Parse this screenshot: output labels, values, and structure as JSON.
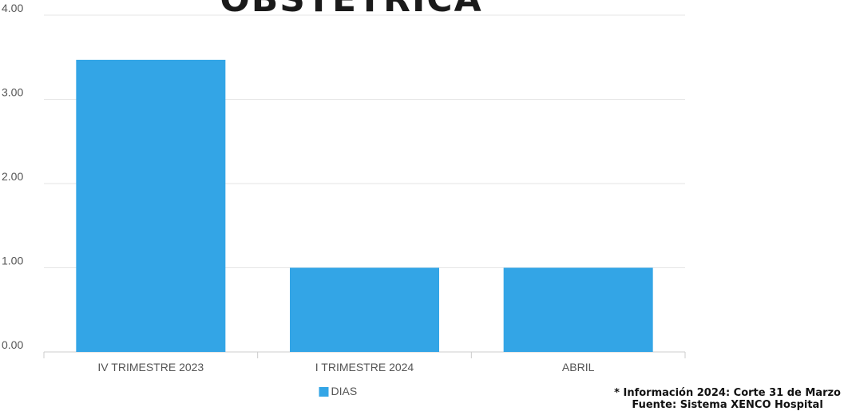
{
  "chart_data": {
    "type": "bar",
    "title": "OBSTETRICA",
    "categories": [
      "IV TRIMESTRE 2023",
      "I TRIMESTRE 2024",
      "ABRIL"
    ],
    "series": [
      {
        "name": "DIAS",
        "values": [
          3.47,
          1.0,
          1.0
        ],
        "color": "#33a5e6"
      }
    ],
    "ylim": [
      0,
      4
    ],
    "y_ticks": [
      "0.00",
      "1.00",
      "2.00",
      "3.00",
      "4.00"
    ],
    "grid": true,
    "legend_position": "bottom-center"
  },
  "notes": {
    "line1": "* Información 2024: Corte 31 de Marzo",
    "line2": "Fuente: Sistema XENCO Hospital"
  }
}
